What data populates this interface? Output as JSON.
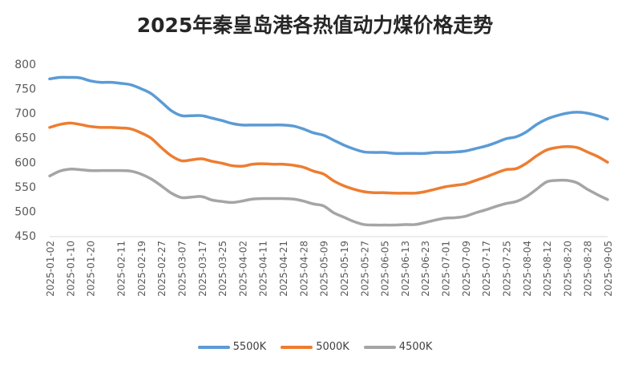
{
  "chart_data": {
    "type": "line",
    "title": "2025年秦皇岛港各热值动力煤价格走势",
    "xlabel": "",
    "ylabel": "",
    "ylim": [
      450,
      800
    ],
    "yticks": [
      450,
      500,
      550,
      600,
      650,
      700,
      750,
      800
    ],
    "grid": false,
    "legend_position": "bottom",
    "x": [
      "2025-01-02",
      "2025-01-06",
      "2025-01-10",
      "2025-01-14",
      "2025-01-20",
      "2025-01-24",
      "2025-02-07",
      "2025-02-11",
      "2025-02-14",
      "2025-02-19",
      "2025-02-23",
      "2025-02-27",
      "2025-03-03",
      "2025-03-07",
      "2025-03-12",
      "2025-03-17",
      "2025-03-21",
      "2025-03-25",
      "2025-03-29",
      "2025-04-02",
      "2025-04-07",
      "2025-04-11",
      "2025-04-16",
      "2025-04-21",
      "2025-04-24",
      "2025-04-28",
      "2025-05-04",
      "2025-05-09",
      "2025-05-14",
      "2025-05-19",
      "2025-05-23",
      "2025-05-27",
      "2025-06-01",
      "2025-06-05",
      "2025-06-09",
      "2025-06-13",
      "2025-06-18",
      "2025-06-23",
      "2025-06-27",
      "2025-07-01",
      "2025-07-05",
      "2025-07-09",
      "2025-07-13",
      "2025-07-17",
      "2025-07-21",
      "2025-07-25",
      "2025-07-29",
      "2025-08-04",
      "2025-08-08",
      "2025-08-12",
      "2025-08-16",
      "2025-08-20",
      "2025-08-24",
      "2025-08-28",
      "2025-09-01",
      "2025-09-05"
    ],
    "x_tick_labels": [
      "2025-01-02",
      "2025-01-10",
      "2025-01-20",
      "2025-02-11",
      "2025-02-19",
      "2025-02-27",
      "2025-03-07",
      "2025-03-17",
      "2025-03-25",
      "2025-04-02",
      "2025-04-11",
      "2025-04-21",
      "2025-04-28",
      "2025-05-09",
      "2025-05-19",
      "2025-05-27",
      "2025-06-05",
      "2025-06-13",
      "2025-06-23",
      "2025-07-01",
      "2025-07-09",
      "2025-07-17",
      "2025-07-25",
      "2025-08-04",
      "2025-08-12",
      "2025-08-20",
      "2025-08-28",
      "2025-09-05"
    ],
    "series": [
      {
        "name": "5500K",
        "color": "#5B9BD5",
        "values": [
          770,
          773,
          773,
          772,
          766,
          763,
          763,
          761,
          758,
          750,
          740,
          723,
          705,
          695,
          695,
          695,
          690,
          685,
          679,
          676,
          676,
          676,
          676,
          676,
          674,
          668,
          660,
          655,
          645,
          635,
          627,
          621,
          620,
          620,
          618,
          618,
          618,
          618,
          620,
          620,
          621,
          623,
          628,
          633,
          640,
          648,
          652,
          662,
          677,
          688,
          695,
          700,
          702,
          700,
          695,
          688
        ]
      },
      {
        "name": "5000K",
        "color": "#ED7D31",
        "values": [
          671,
          677,
          680,
          677,
          673,
          671,
          671,
          670,
          668,
          660,
          649,
          630,
          613,
          603,
          605,
          607,
          602,
          598,
          593,
          592,
          596,
          597,
          596,
          596,
          594,
          590,
          582,
          576,
          562,
          552,
          545,
          540,
          538,
          538,
          537,
          537,
          537,
          540,
          545,
          550,
          553,
          556,
          563,
          570,
          578,
          585,
          587,
          598,
          613,
          625,
          630,
          632,
          630,
          621,
          612,
          600
        ]
      },
      {
        "name": "4500K",
        "color": "#A5A5A5",
        "values": [
          572,
          582,
          586,
          585,
          583,
          583,
          583,
          583,
          582,
          576,
          566,
          552,
          537,
          528,
          529,
          530,
          523,
          520,
          518,
          521,
          525,
          526,
          526,
          526,
          525,
          521,
          515,
          511,
          497,
          488,
          479,
          473,
          472,
          472,
          472,
          473,
          473,
          477,
          482,
          486,
          487,
          490,
          497,
          503,
          510,
          516,
          520,
          530,
          545,
          560,
          563,
          563,
          558,
          545,
          534,
          524
        ]
      }
    ]
  }
}
